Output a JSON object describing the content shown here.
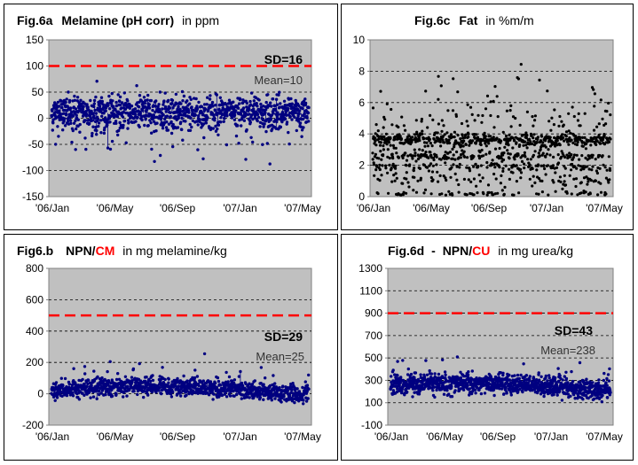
{
  "chart_data": [
    {
      "id": "a",
      "type": "scatter",
      "title": {
        "prefix": "Fig.6a",
        "name": "Melamine (pH corr)",
        "connector": "",
        "unit": "in  ppm"
      },
      "ylim": [
        -150,
        150
      ],
      "yticks": [
        150,
        100,
        50,
        0,
        -50,
        -100,
        -150
      ],
      "dashed_lines": [
        50,
        0,
        -50,
        -100
      ],
      "x_ticks": [
        "'06/Jan",
        "'06/May",
        "'06/Sep",
        "'07/Jan",
        "'07/May"
      ],
      "limit_line": 100,
      "sd_label": "SD=16",
      "mean_label": "Mean=10",
      "data_summary": {
        "mean": 10,
        "sd": 16
      },
      "colors": {
        "points": "#000080",
        "limit": "#ff0000",
        "plot_bg": "#c0c0c0"
      }
    },
    {
      "id": "c",
      "type": "scatter",
      "title": {
        "prefix": "Fig.6c",
        "name": "Fat",
        "connector": "",
        "unit": "in %m/m"
      },
      "ylim": [
        0,
        10
      ],
      "yticks": [
        10,
        8,
        6,
        4,
        2,
        0
      ],
      "dashed_lines": [
        8,
        6,
        4,
        2
      ],
      "x_ticks": [
        "'06/Jan",
        "'06/May",
        "'06/Sep",
        "'07/Jan",
        "'07/May"
      ],
      "colors": {
        "points": "#000000",
        "plot_bg": "#c0c0c0"
      }
    },
    {
      "id": "b",
      "type": "scatter",
      "title": {
        "prefix": "Fig6.b",
        "name": "NPN/",
        "cm": "CM",
        "connector": "",
        "unit": "in mg melamine/kg"
      },
      "ylim": [
        -200,
        800
      ],
      "yticks": [
        800,
        600,
        400,
        200,
        0,
        -200
      ],
      "dashed_lines": [
        600,
        400,
        200,
        0
      ],
      "x_ticks": [
        "'06/Jan",
        "'06/May",
        "'06/Sep",
        "'07/Jan",
        "'07/May"
      ],
      "limit_line": 500,
      "sd_label": "SD=29",
      "mean_label": "Mean=25",
      "data_summary": {
        "mean": 25,
        "sd": 29
      },
      "colors": {
        "points": "#000080",
        "limit": "#ff0000",
        "plot_bg": "#c0c0c0"
      }
    },
    {
      "id": "d",
      "type": "scatter",
      "title": {
        "prefix": "Fig.6d",
        "name": "NPN/",
        "cm": "CU",
        "connector": "-",
        "unit": "in mg urea/kg"
      },
      "ylim": [
        -100,
        1300
      ],
      "yticks": [
        1300,
        1100,
        900,
        700,
        500,
        300,
        100,
        -100
      ],
      "dashed_lines": [
        1100,
        900,
        700,
        500,
        300,
        100
      ],
      "x_ticks": [
        "'06/Jan",
        "'06/May",
        "'06/Sep",
        "'07/Jan",
        "'07/May"
      ],
      "limit_line": 900,
      "sd_label": "SD=43",
      "mean_label": "Mean=238",
      "data_summary": {
        "mean": 238,
        "sd": 43
      },
      "colors": {
        "points": "#000080",
        "limit": "#ff0000",
        "plot_bg": "#c0c0c0"
      }
    }
  ]
}
